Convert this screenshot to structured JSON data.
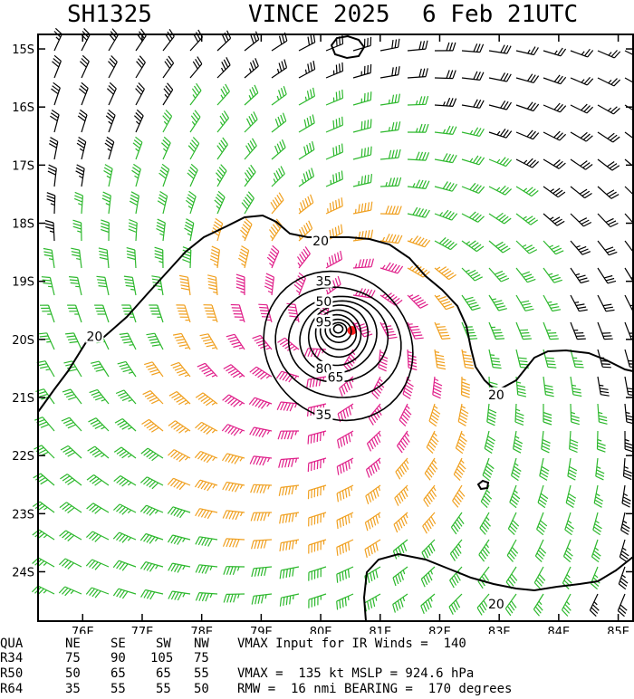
{
  "title": {
    "storm_id": "SH1325",
    "storm_name_year": "VINCE 2025",
    "date_time": "6 Feb 21UTC"
  },
  "colors": {
    "wind_below_34": "#000000",
    "wind_34_50": "#2db82d",
    "wind_50_64": "#f0a020",
    "wind_64_plus": "#e0208a",
    "center_marker": "#ff2020",
    "contours": "#000000",
    "coastline": "#000000"
  },
  "chart_data": {
    "type": "wind-field-map",
    "axes": {
      "lon_range": [
        75.25,
        85.25
      ],
      "lat_range": [
        -24.85,
        -14.75
      ],
      "lon_ticks": [
        "76E",
        "77E",
        "78E",
        "79E",
        "80E",
        "81E",
        "82E",
        "83E",
        "84E",
        "85E"
      ],
      "lat_ticks": [
        "15S",
        "16S",
        "17S",
        "18S",
        "19S",
        "20S",
        "21S",
        "22S",
        "23S",
        "24S"
      ]
    },
    "center": {
      "lon": 80.25,
      "lat": -19.8
    },
    "contour_labels": [
      {
        "text": "20",
        "lon": 80.0,
        "lat": -18.3
      },
      {
        "text": "20",
        "lon": 76.2,
        "lat": -19.95
      },
      {
        "text": "20",
        "lon": 82.95,
        "lat": -20.95
      },
      {
        "text": "20",
        "lon": 82.95,
        "lat": -24.55
      },
      {
        "text": "35",
        "lon": 80.05,
        "lat": -19.0
      },
      {
        "text": "50",
        "lon": 80.05,
        "lat": -19.35
      },
      {
        "text": "95",
        "lon": 80.05,
        "lat": -19.7
      },
      {
        "text": "80",
        "lon": 80.05,
        "lat": -20.5
      },
      {
        "text": "65",
        "lon": 80.25,
        "lat": -20.65
      },
      {
        "text": "35",
        "lon": 80.05,
        "lat": -21.3
      }
    ]
  },
  "table": {
    "header": [
      "QUA",
      "NE",
      "SE",
      "SW",
      "NW"
    ],
    "rows": [
      {
        "label": "R34",
        "values": [
          "75",
          "90",
          "105",
          "75"
        ]
      },
      {
        "label": "R50",
        "values": [
          "50",
          "65",
          "65",
          "55"
        ]
      },
      {
        "label": "R64",
        "values": [
          "35",
          "55",
          "55",
          "50"
        ]
      }
    ],
    "notes": [
      "VMAX Input for IR Winds =  140",
      "VMAX =  135 kt MSLP = 924.6 hPa",
      "RMW =  16 nmi BEARING =  170 degrees"
    ]
  }
}
